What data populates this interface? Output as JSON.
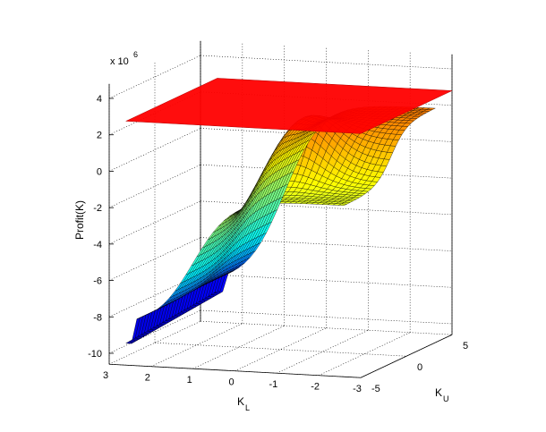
{
  "chart_data": {
    "type": "surface",
    "zlabel": "Profit(K)",
    "xlabel_main": "K",
    "xlabel_sub": "L",
    "ylabel_main": "K",
    "ylabel_sub": "U",
    "exponent_label": "x 10",
    "exponent_power": "6",
    "z_ticks": [
      "4",
      "2",
      "0",
      "-2",
      "-4",
      "-6",
      "-8",
      "-10"
    ],
    "kl_ticks": [
      "3",
      "2",
      "1",
      "0",
      "-1",
      "-2",
      "-3"
    ],
    "ku_ticks": [
      "-5",
      "0",
      "5"
    ],
    "z_range": [
      -10,
      4
    ],
    "kl_range": [
      -3,
      3
    ],
    "ku_range": [
      -5,
      5
    ],
    "grid": true,
    "plane_level": 2.8,
    "plane_color": "#ff0000",
    "colormap": "jet"
  }
}
